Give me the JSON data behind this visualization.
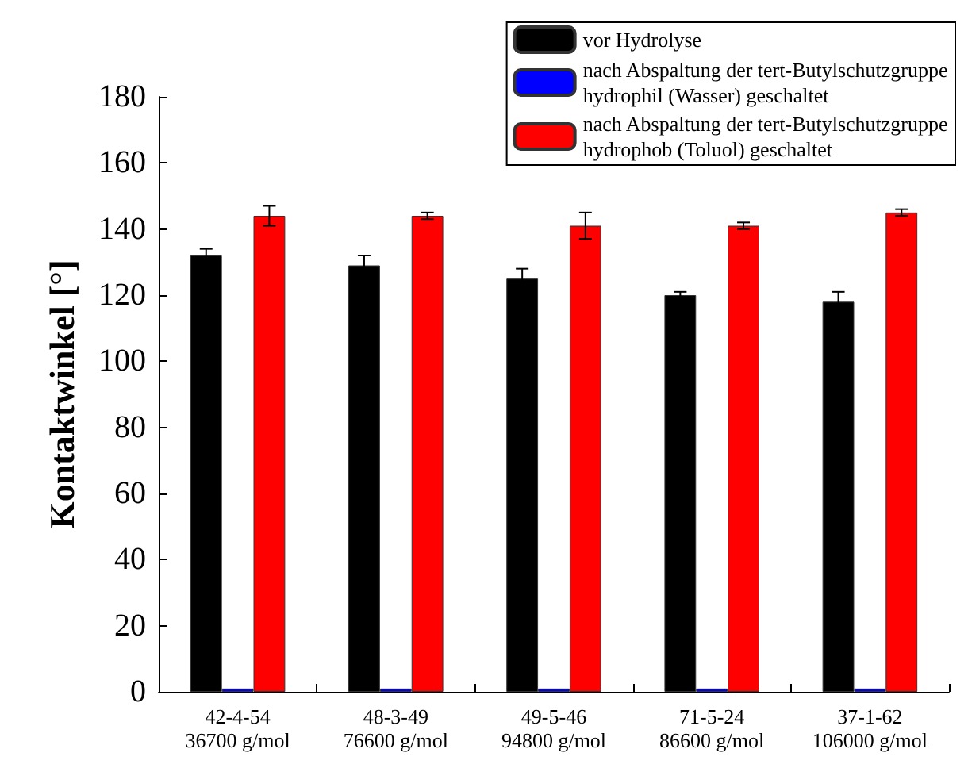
{
  "chart_data": {
    "type": "bar",
    "ylabel": "Kontaktwinkel [°]",
    "categories": [
      "42-4-54\n36700 g/mol",
      "48-3-49\n76600 g/mol",
      "49-5-46\n94800 g/mol",
      "71-5-24\n86600 g/mol",
      "37-1-62\n106000 g/mol"
    ],
    "series": [
      {
        "name": "vor Hydrolyse",
        "color": "#000000",
        "values": [
          132,
          129,
          125,
          120,
          118
        ],
        "errors": [
          2,
          3,
          3,
          1,
          3
        ]
      },
      {
        "name": "nach Abspaltung der tert-Butylschutzgruppe\nhydrophil (Wasser) geschaltet",
        "color": "#0000ff",
        "values": [
          1,
          1,
          1,
          1,
          1
        ]
      },
      {
        "name": "nach Abspaltung der tert-Butylschutzgruppe\nhydrophob (Toluol) geschaltet",
        "color": "#ff0000",
        "values": [
          144,
          144,
          141,
          141,
          145
        ],
        "errors": [
          3,
          1,
          4,
          1,
          1
        ]
      }
    ],
    "ylim": [
      0,
      180
    ],
    "yticks": [
      0,
      20,
      40,
      60,
      80,
      100,
      120,
      140,
      160,
      180
    ],
    "grid": false,
    "legend": "top right"
  }
}
